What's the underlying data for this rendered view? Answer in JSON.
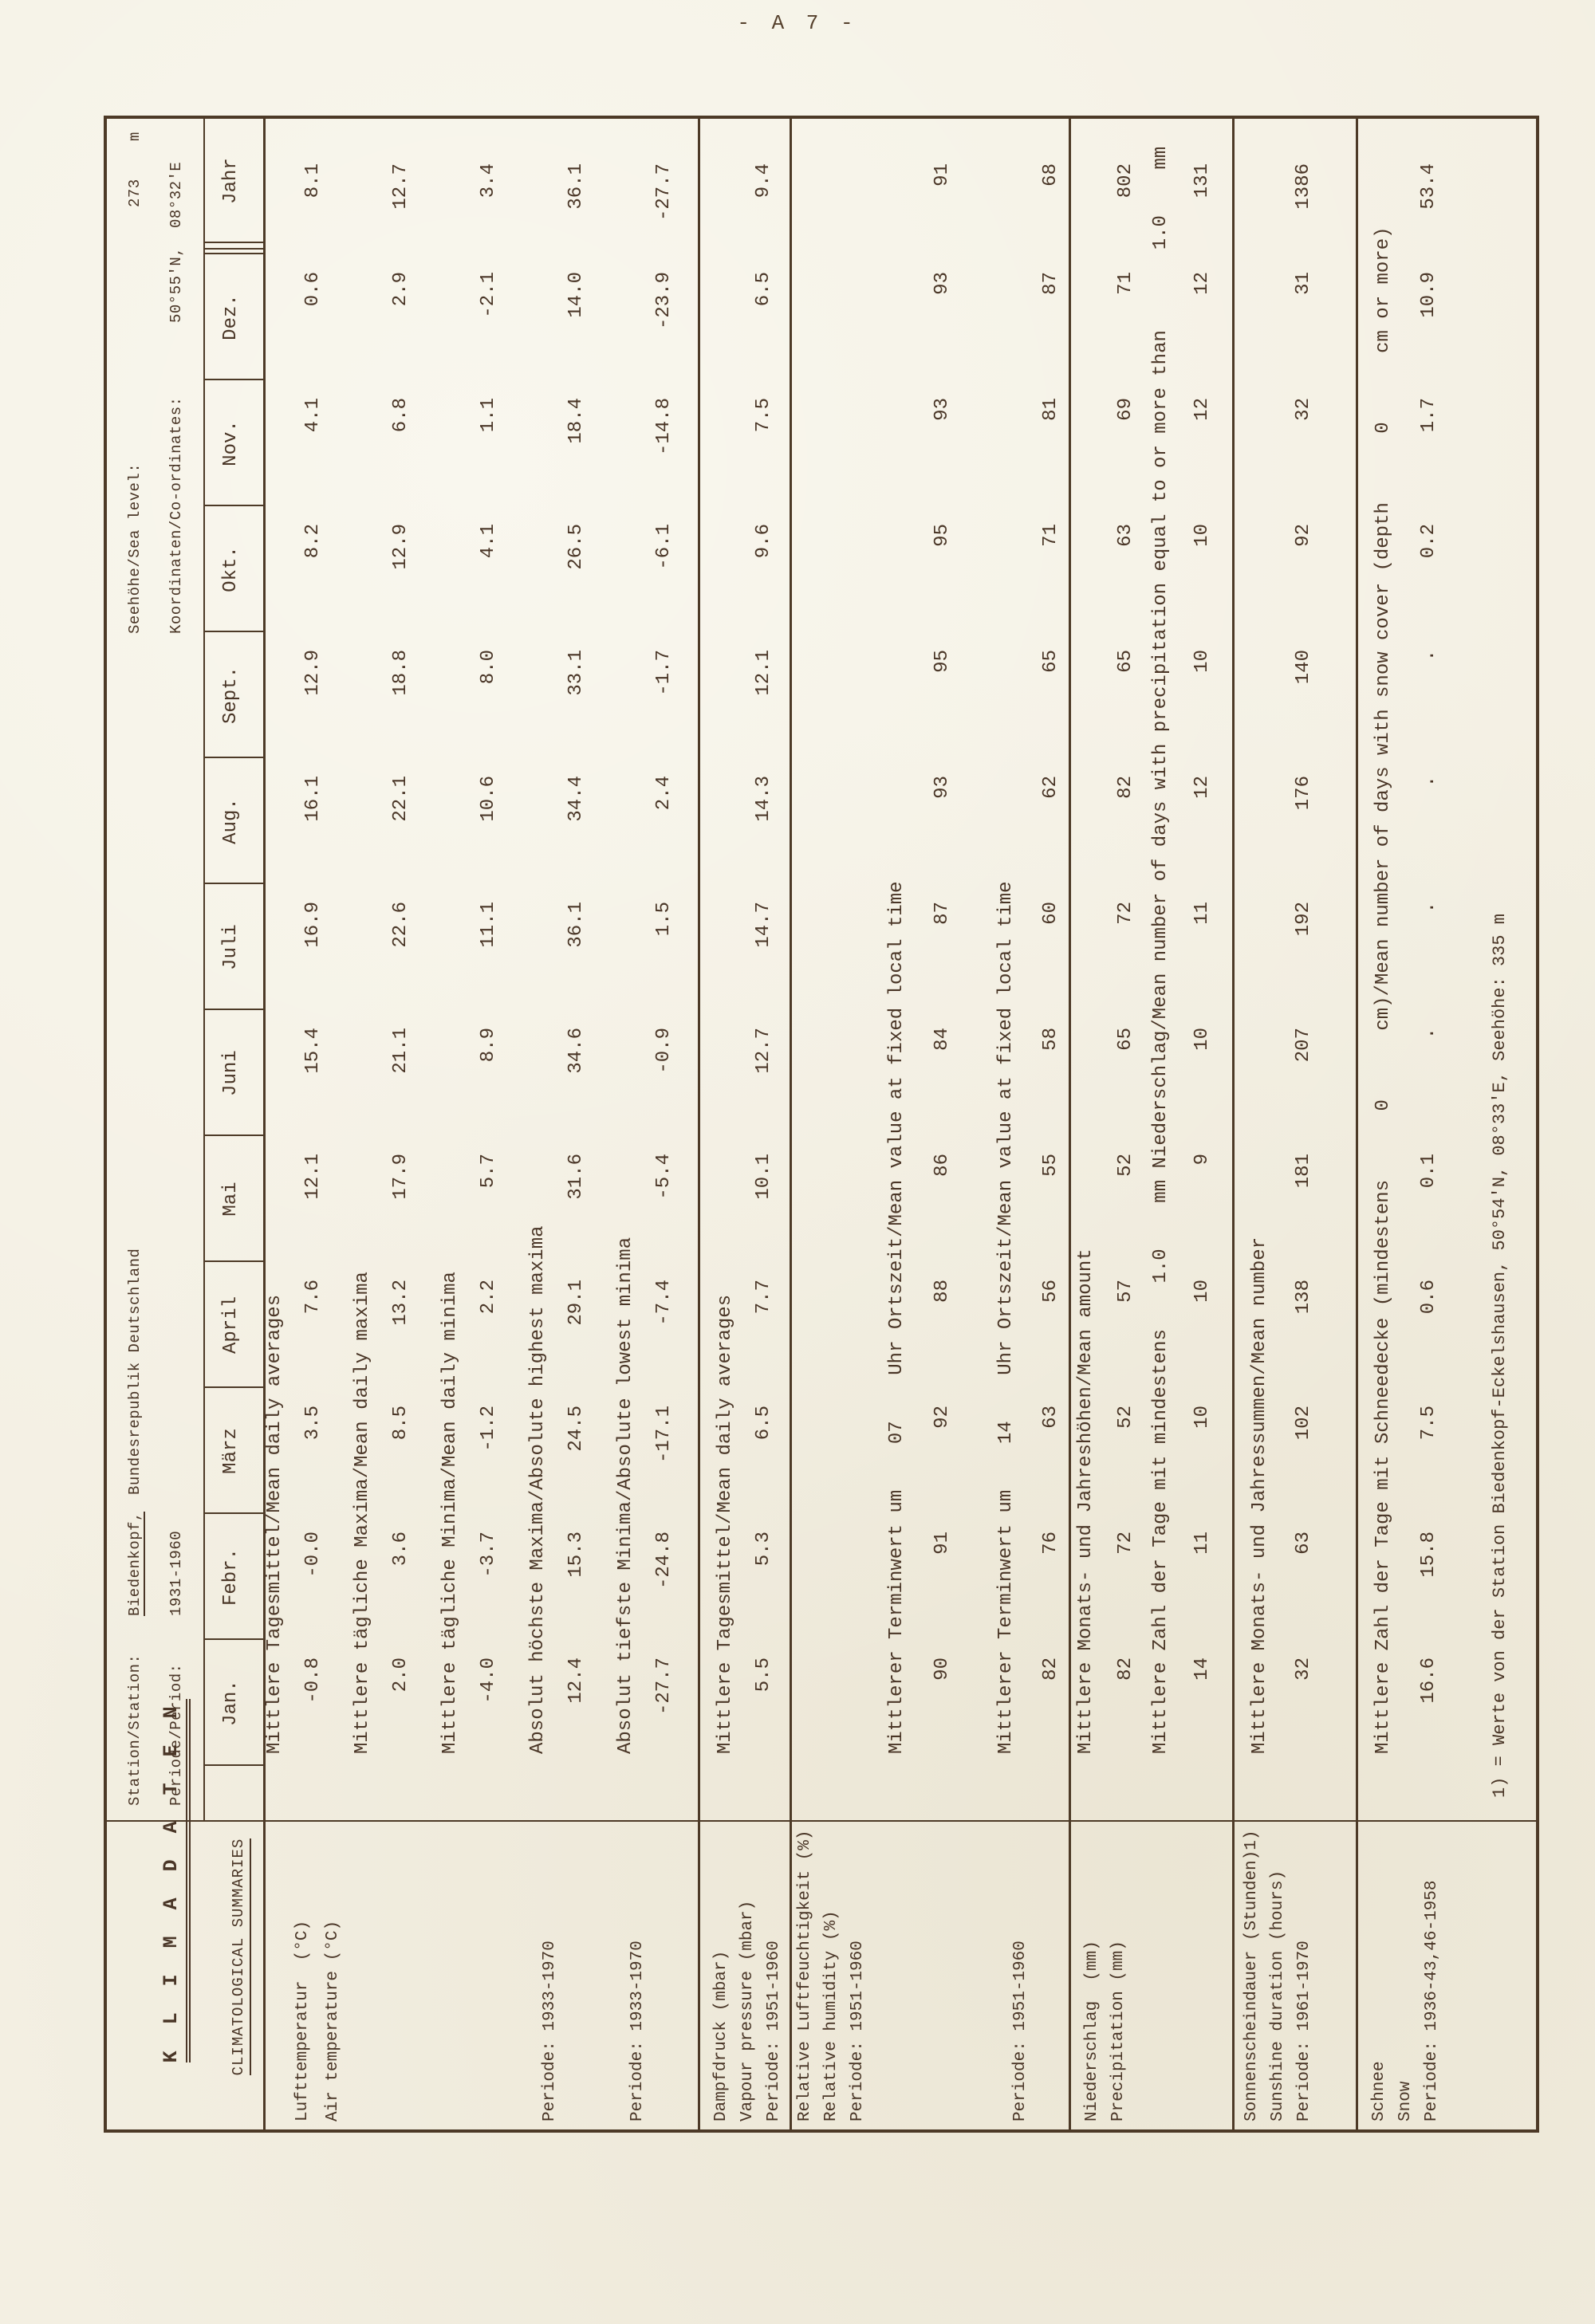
{
  "page": {
    "number_label": "- A 7 -"
  },
  "corner": {
    "title_de": "K L I M A D A T E N",
    "title_en": "CLIMATOLOGICAL SUMMARIES"
  },
  "header": {
    "station_label": "Station/Station:",
    "station_name": "Biedenkopf,",
    "station_country": "Bundesrepublik Deutschland",
    "period_label": "Periode/Period:",
    "period_value": "1931-1960",
    "sea_level_label": "Seehöhe/Sea level:",
    "sea_level_value": "273",
    "sea_level_unit": "m",
    "coords_label": "Koordinaten/Co-ordinates:",
    "coords_value": "50°55'N,  08°32'E"
  },
  "months": [
    "Jan.",
    "Febr.",
    "März",
    "April",
    "Mai",
    "Juni",
    "Juli",
    "Aug.",
    "Sept.",
    "Okt.",
    "Nov.",
    "Dez."
  ],
  "year_label": "Jahr",
  "rows": [
    {
      "caption": "Mittlere Tagesmittel/Mean daily averages",
      "values": [
        "-0.8",
        "-0.0",
        "3.5",
        "7.6",
        "12.1",
        "15.4",
        "16.9",
        "16.1",
        "12.9",
        "8.2",
        "4.1",
        "0.6"
      ],
      "year": "8.1"
    },
    {
      "caption": "Mittlere tägliche Maxima/Mean daily maxima",
      "values": [
        "2.0",
        "3.6",
        "8.5",
        "13.2",
        "17.9",
        "21.1",
        "22.6",
        "22.1",
        "18.8",
        "12.9",
        "6.8",
        "2.9"
      ],
      "year": "12.7"
    },
    {
      "caption": "Mittlere tägliche Minima/Mean daily minima",
      "values": [
        "-4.0",
        "-3.7",
        "-1.2",
        "2.2",
        "5.7",
        "8.9",
        "11.1",
        "10.6",
        "8.0",
        "4.1",
        "1.1",
        "-2.1"
      ],
      "year": "3.4"
    },
    {
      "caption": "Absolut höchste Maxima/Absolute highest maxima",
      "values": [
        "12.4",
        "15.3",
        "24.5",
        "29.1",
        "31.6",
        "34.6",
        "36.1",
        "34.4",
        "33.1",
        "26.5",
        "18.4",
        "14.0"
      ],
      "year": "36.1"
    },
    {
      "caption": "Absolut tiefste Minima/Absolute lowest minima",
      "values": [
        "-27.7",
        "-24.8",
        "-17.1",
        "-7.4",
        "-5.4",
        "-0.9",
        "1.5",
        "2.4",
        "-1.7",
        "-6.1",
        "-14.8",
        "-23.9"
      ],
      "year": "-27.7"
    },
    {
      "caption": "Mittlere Tagesmittel/Mean daily averages",
      "values": [
        "5.5",
        "5.3",
        "6.5",
        "7.7",
        "10.1",
        "12.7",
        "14.7",
        "14.3",
        "12.1",
        "9.6",
        "7.5",
        "6.5"
      ],
      "year": "9.4"
    },
    {
      "caption": "Mittlerer Terminwert um    07    Uhr Ortszeit/Mean value at fixed local time",
      "values": [
        "90",
        "91",
        "92",
        "88",
        "86",
        "84",
        "87",
        "93",
        "95",
        "95",
        "93",
        "93"
      ],
      "year": "91"
    },
    {
      "caption": "Mittlerer Terminwert um    14    Uhr Ortszeit/Mean value at fixed local time",
      "values": [
        "82",
        "76",
        "63",
        "56",
        "55",
        "58",
        "60",
        "62",
        "65",
        "71",
        "81",
        "87"
      ],
      "year": "68"
    },
    {
      "caption": "Mittlere Monats- und Jahreshöhen/Mean amount",
      "values": [
        "82",
        "72",
        "52",
        "57",
        "52",
        "65",
        "72",
        "82",
        "65",
        "63",
        "69",
        "71"
      ],
      "year": "802"
    },
    {
      "caption": "Mittlere Zahl der Tage mit mindestens    1.0    mm Niederschlag/Mean number of days with precipitation equal to or more than       1.0    mm",
      "values": [
        "14",
        "11",
        "10",
        "10",
        "9",
        "10",
        "11",
        "12",
        "10",
        "10",
        "12",
        "12"
      ],
      "year": "131"
    },
    {
      "caption": "Mittlere Monats- und Jahressummen/Mean number",
      "values": [
        "32",
        "63",
        "102",
        "138",
        "181",
        "207",
        "192",
        "176",
        "140",
        "92",
        "32",
        "31"
      ],
      "year": "1386"
    },
    {
      "caption": "Mittlere Zahl der Tage mit Schneedecke (mindestens      0      cm)/Mean number of days with snow cover (depth      0      cm or more)",
      "values": [
        "16.6",
        "15.8",
        "7.5",
        "0.6",
        "0.1",
        ".",
        ".",
        ".",
        ".",
        "0.2",
        "1.7",
        "10.9"
      ],
      "year": "53.4"
    }
  ],
  "label_blocks": [
    {
      "lines": [
        "Lufttemperatur  (°C)",
        "Air temperature (°C)",
        "Periode: 1933-1970",
        "Periode: 1933-1970"
      ]
    },
    {
      "lines": [
        "Dampfdruck (mbar)",
        "Vapour pressure (mbar)",
        "Periode: 1951-1960"
      ]
    },
    {
      "lines": [
        "Relative Luftfeuchtigkeit (%)",
        "Relative humidity (%)",
        "Periode: 1951-1960",
        "Periode: 1951-1960"
      ]
    },
    {
      "lines": [
        "Niederschlag  (mm)",
        "Precipitation (mm)"
      ]
    },
    {
      "lines": [
        "Sonnenscheindauer (Stunden)1)",
        "Sunshine duration (hours)",
        "Periode: 1961-1970"
      ]
    },
    {
      "lines": [
        "Schnee",
        "Snow",
        "Periode: 1936-43,46-1958"
      ]
    }
  ],
  "footnote": "1) = Werte von der Station Biedenkopf-Eckelshausen, 50°54'N, 08°33'E, Seehöhe: 335 m"
}
